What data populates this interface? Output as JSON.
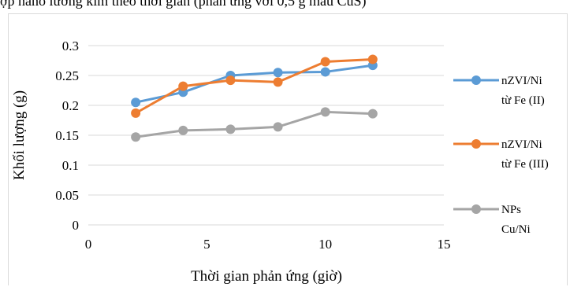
{
  "caption_fragment": "ợp nano lưỡng kim theo thời gian (phản ứng với 0,5 g mẫu CuS)",
  "chart_data": {
    "type": "line",
    "title": "",
    "xlabel": "Thời gian phản ứng (giờ)",
    "ylabel": "Khối lượng (g)",
    "xlim": [
      0,
      15
    ],
    "ylim": [
      0,
      0.3
    ],
    "x_ticks": [
      "0",
      "5",
      "10",
      "15"
    ],
    "y_ticks": [
      "0",
      "0.05",
      "0.1",
      "0.15",
      "0.2",
      "0.25",
      "0.3"
    ],
    "grid": "horizontal",
    "legend_position": "right",
    "x": [
      2,
      4,
      6,
      8,
      10,
      12
    ],
    "series": [
      {
        "name": "nZVI/Ni từ Fe (II)",
        "legend_lines": [
          "nZVI/Ni",
          "từ Fe (II)"
        ],
        "color": "#5b9bd5",
        "values": [
          0.205,
          0.222,
          0.25,
          0.255,
          0.256,
          0.267
        ]
      },
      {
        "name": "nZVI/Ni từ Fe (III)",
        "legend_lines": [
          "nZVI/Ni",
          "từ Fe (III)"
        ],
        "color": "#ed7d31",
        "values": [
          0.187,
          0.232,
          0.242,
          0.239,
          0.273,
          0.277
        ]
      },
      {
        "name": "NPs Cu/Ni",
        "legend_lines": [
          "NPs",
          "Cu/Ni"
        ],
        "color": "#a5a5a5",
        "values": [
          0.147,
          0.158,
          0.16,
          0.164,
          0.189,
          0.186
        ]
      }
    ]
  }
}
